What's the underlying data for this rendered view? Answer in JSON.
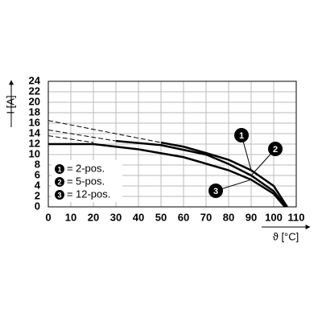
{
  "chart_data": {
    "type": "line",
    "y_label": "I [A]",
    "x_label": "ϑ [°C]",
    "xlim": [
      0,
      110
    ],
    "xticks": [
      0,
      10,
      20,
      30,
      40,
      50,
      60,
      70,
      80,
      90,
      100,
      110
    ],
    "ylim": [
      0,
      24
    ],
    "yticks": [
      0,
      2,
      4,
      6,
      8,
      10,
      12,
      14,
      16,
      18,
      20,
      22,
      24
    ],
    "grid": true,
    "series": [
      {
        "name": "2-pos.",
        "marker": "1",
        "color": "#000000",
        "x": [
          50,
          60,
          70,
          80,
          90,
          100,
          106
        ],
        "values": [
          12.3,
          11.5,
          10.3,
          9,
          7,
          4,
          0
        ],
        "extrapolated": {
          "x": [
            0,
            50
          ],
          "values": [
            16.5,
            12.3
          ]
        }
      },
      {
        "name": "5-pos.",
        "marker": "2",
        "color": "#000000",
        "x": [
          30,
          50,
          70,
          80,
          90,
          100,
          105.5
        ],
        "values": [
          12.6,
          11.8,
          10,
          8.2,
          6,
          3,
          0
        ],
        "extrapolated": {
          "x": [
            0,
            30
          ],
          "values": [
            14.7,
            12.6
          ]
        }
      },
      {
        "name": "12-pos.",
        "marker": "3",
        "color": "#000000",
        "x": [
          0,
          20,
          40,
          60,
          80,
          90,
          100,
          105
        ],
        "values": [
          12,
          12,
          11,
          9.5,
          7,
          5.2,
          2.5,
          0
        ],
        "extrapolated": {
          "x": [
            0,
            20
          ],
          "values": [
            13.6,
            12.3
          ]
        }
      }
    ]
  }
}
